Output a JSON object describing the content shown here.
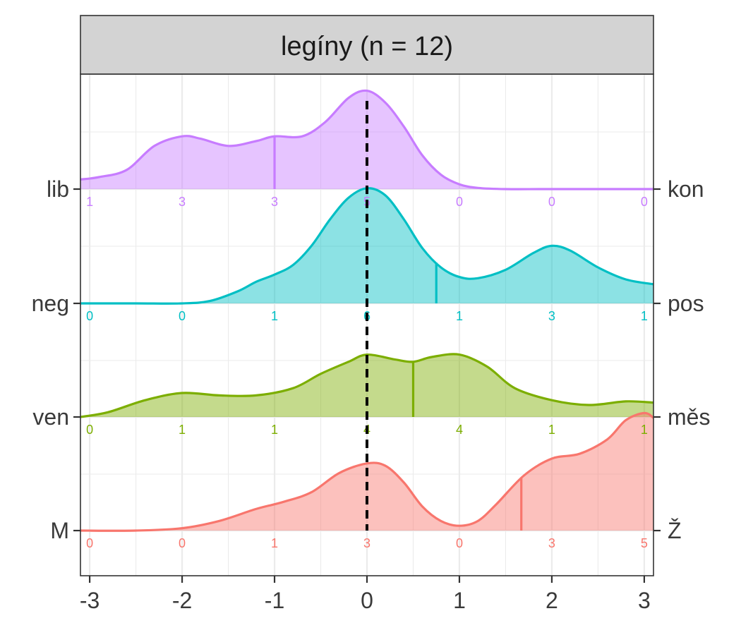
{
  "chart_data": {
    "type": "ridgeline",
    "strip_title": "legíny (n = 12)",
    "xlim": [
      -3.1,
      3.1
    ],
    "x_ticks": [
      -3,
      -2,
      -1,
      0,
      1,
      2,
      3
    ],
    "x_tick_labels": [
      "-3",
      "-2",
      "-1",
      "0",
      "1",
      "2",
      "3"
    ],
    "reference_line_x": 0,
    "grid": true,
    "series": [
      {
        "left_label": "lib",
        "right_label": "kon",
        "color": "#C77CFF",
        "counts": [
          "1",
          "3",
          "3",
          "5",
          "0",
          "0",
          "0"
        ],
        "mean": -1.0,
        "density": [
          [
            -3.1,
            0.08
          ],
          [
            -2.9,
            0.1
          ],
          [
            -2.6,
            0.16
          ],
          [
            -2.3,
            0.36
          ],
          [
            -2.0,
            0.44
          ],
          [
            -1.8,
            0.42
          ],
          [
            -1.5,
            0.36
          ],
          [
            -1.2,
            0.4
          ],
          [
            -1.0,
            0.44
          ],
          [
            -0.7,
            0.44
          ],
          [
            -0.45,
            0.56
          ],
          [
            -0.2,
            0.76
          ],
          [
            0.0,
            0.82
          ],
          [
            0.2,
            0.72
          ],
          [
            0.4,
            0.52
          ],
          [
            0.6,
            0.28
          ],
          [
            0.8,
            0.12
          ],
          [
            1.0,
            0.04
          ],
          [
            1.2,
            0.01
          ],
          [
            1.5,
            0.0
          ],
          [
            2.0,
            0.0
          ],
          [
            3.1,
            0.0
          ]
        ]
      },
      {
        "left_label": "neg",
        "right_label": "pos",
        "color": "#00BFC4",
        "counts": [
          "0",
          "0",
          "1",
          "6",
          "1",
          "3",
          "1"
        ],
        "mean": 0.75,
        "density": [
          [
            -3.1,
            0.0
          ],
          [
            -2.5,
            0.0
          ],
          [
            -2.0,
            0.0
          ],
          [
            -1.7,
            0.02
          ],
          [
            -1.4,
            0.1
          ],
          [
            -1.2,
            0.18
          ],
          [
            -1.0,
            0.24
          ],
          [
            -0.8,
            0.32
          ],
          [
            -0.6,
            0.48
          ],
          [
            -0.4,
            0.7
          ],
          [
            -0.2,
            0.88
          ],
          [
            0.0,
            0.96
          ],
          [
            0.2,
            0.9
          ],
          [
            0.4,
            0.7
          ],
          [
            0.6,
            0.46
          ],
          [
            0.8,
            0.3
          ],
          [
            1.0,
            0.22
          ],
          [
            1.2,
            0.21
          ],
          [
            1.5,
            0.28
          ],
          [
            1.8,
            0.42
          ],
          [
            2.0,
            0.48
          ],
          [
            2.2,
            0.44
          ],
          [
            2.5,
            0.3
          ],
          [
            2.8,
            0.2
          ],
          [
            3.1,
            0.16
          ]
        ]
      },
      {
        "left_label": "ven",
        "right_label": "měs",
        "color": "#7CAE00",
        "counts": [
          "0",
          "1",
          "1",
          "4",
          "4",
          "1",
          "1"
        ],
        "mean": 0.5,
        "density": [
          [
            -3.1,
            0.0
          ],
          [
            -2.8,
            0.04
          ],
          [
            -2.4,
            0.14
          ],
          [
            -2.0,
            0.2
          ],
          [
            -1.6,
            0.18
          ],
          [
            -1.2,
            0.18
          ],
          [
            -0.8,
            0.24
          ],
          [
            -0.5,
            0.36
          ],
          [
            -0.2,
            0.46
          ],
          [
            0.0,
            0.52
          ],
          [
            0.3,
            0.48
          ],
          [
            0.5,
            0.46
          ],
          [
            0.7,
            0.5
          ],
          [
            1.0,
            0.52
          ],
          [
            1.3,
            0.42
          ],
          [
            1.6,
            0.24
          ],
          [
            2.0,
            0.14
          ],
          [
            2.4,
            0.1
          ],
          [
            2.8,
            0.13
          ],
          [
            3.1,
            0.12
          ]
        ]
      },
      {
        "left_label": "M",
        "right_label": "Ž",
        "color": "#F8766D",
        "counts": [
          "0",
          "0",
          "1",
          "3",
          "0",
          "3",
          "5"
        ],
        "mean": 1.67,
        "density": [
          [
            -3.1,
            0.0
          ],
          [
            -2.5,
            0.0
          ],
          [
            -2.0,
            0.02
          ],
          [
            -1.6,
            0.08
          ],
          [
            -1.2,
            0.18
          ],
          [
            -0.9,
            0.24
          ],
          [
            -0.6,
            0.32
          ],
          [
            -0.3,
            0.48
          ],
          [
            0.0,
            0.56
          ],
          [
            0.2,
            0.54
          ],
          [
            0.4,
            0.4
          ],
          [
            0.6,
            0.2
          ],
          [
            0.8,
            0.08
          ],
          [
            1.0,
            0.04
          ],
          [
            1.2,
            0.08
          ],
          [
            1.4,
            0.22
          ],
          [
            1.7,
            0.46
          ],
          [
            2.0,
            0.6
          ],
          [
            2.3,
            0.64
          ],
          [
            2.6,
            0.76
          ],
          [
            2.8,
            0.92
          ],
          [
            3.0,
            0.98
          ],
          [
            3.1,
            0.94
          ]
        ]
      }
    ]
  }
}
